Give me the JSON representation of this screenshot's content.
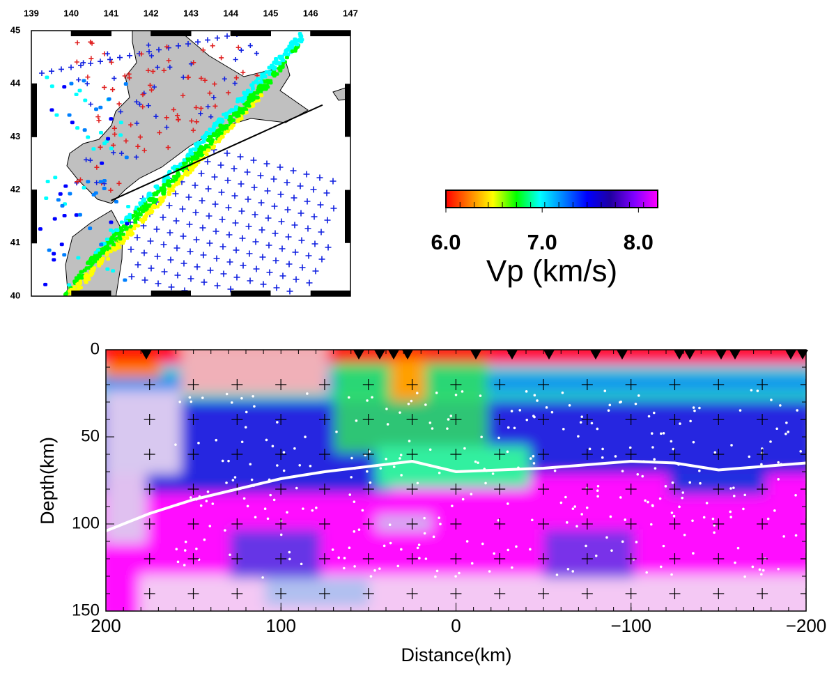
{
  "chart_data": [
    {
      "type": "map",
      "xlim": [
        139,
        147
      ],
      "ylim": [
        40,
        45
      ],
      "xticks": [
        139,
        140,
        141,
        142,
        143,
        144,
        145,
        146,
        147
      ],
      "yticks": [
        40,
        41,
        42,
        43,
        44,
        45
      ],
      "series": [
        {
          "color": "#000000",
          "x": [
            141.0,
            146.3
          ],
          "values": [
            41.8,
            43.6
          ]
        }
      ]
    },
    {
      "type": "colorbar",
      "xlim": [
        6.0,
        8.2
      ],
      "xticks": [
        {
          "value": 6,
          "label": "6.0"
        },
        {
          "value": 7,
          "label": "7.0"
        },
        {
          "value": 8,
          "label": "8.0"
        }
      ],
      "colors": [
        "#ff0000",
        "#ff8000",
        "#ffff00",
        "#00ff00",
        "#00ffff",
        "#0080ff",
        "#0000ff",
        "#2000a0",
        "#8000ff",
        "#ff00ff"
      ],
      "xlabel": "Vp (km/s)"
    },
    {
      "type": "heatmap",
      "xlabel": "Distance(km)",
      "ylabel": "Depth(km)",
      "xlim": [
        200,
        -200
      ],
      "ylim": [
        150,
        0
      ],
      "xticks": [
        200,
        100,
        0,
        {
          "value": -100,
          "label": "−100"
        },
        {
          "value": -200,
          "label": "−200"
        }
      ],
      "yticks": [
        0,
        50,
        100,
        150
      ],
      "series": [
        {
          "color": "#ffffff",
          "x": [
            200,
            175,
            150,
            125,
            100,
            75,
            50,
            25,
            0,
            -25,
            -50,
            -75,
            -100,
            -125,
            -150,
            -175,
            -200
          ],
          "values": [
            104,
            94,
            86,
            80,
            74,
            70,
            67,
            64,
            70,
            69,
            68,
            66,
            64,
            65,
            69,
            67,
            65
          ]
        }
      ]
    }
  ]
}
